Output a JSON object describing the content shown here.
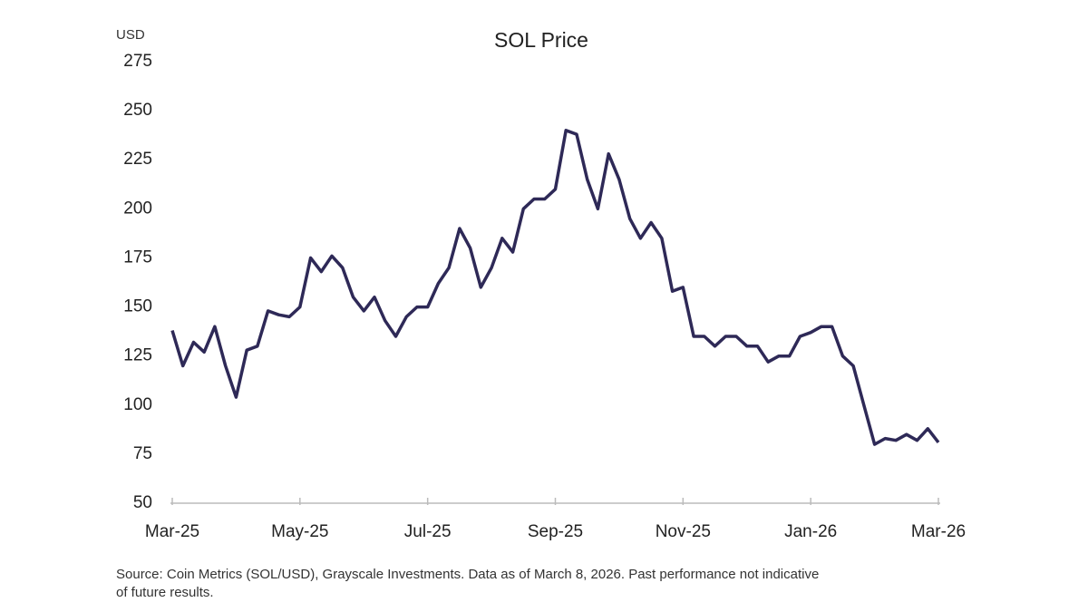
{
  "chart_data": {
    "type": "line",
    "title": "SOL Price",
    "y_label": "USD",
    "note": "Source: Coin Metrics (SOL/USD), Grayscale Investments. Data as of March 8, 2026. Past performance not indicative of future results.",
    "categories": [
      "Mar-25",
      null,
      null,
      null,
      null,
      null,
      null,
      null,
      null,
      null,
      null,
      null,
      "May-25",
      null,
      null,
      null,
      null,
      null,
      null,
      null,
      null,
      null,
      null,
      null,
      "Jul-25",
      null,
      null,
      null,
      null,
      null,
      null,
      null,
      null,
      null,
      null,
      null,
      "Sep-25",
      null,
      null,
      null,
      null,
      null,
      null,
      null,
      null,
      null,
      null,
      null,
      "Nov-25",
      null,
      null,
      null,
      null,
      null,
      null,
      null,
      null,
      null,
      null,
      null,
      "Jan-26",
      null,
      null,
      null,
      null,
      null,
      null,
      null,
      null,
      null,
      null,
      null,
      "Mar-26"
    ],
    "series": [
      {
        "name": "SOL",
        "color": "#2e2957",
        "values": [
          138,
          120,
          132,
          127,
          140,
          120,
          104,
          128,
          130,
          148,
          146,
          145,
          150,
          175,
          168,
          176,
          170,
          155,
          148,
          155,
          143,
          135,
          145,
          150,
          150,
          162,
          170,
          190,
          180,
          160,
          170,
          185,
          178,
          200,
          205,
          205,
          210,
          240,
          238,
          215,
          200,
          228,
          215,
          195,
          185,
          193,
          185,
          158,
          160,
          135,
          135,
          130,
          135,
          135,
          130,
          130,
          122,
          125,
          125,
          135,
          137,
          140,
          140,
          125,
          120,
          100,
          80,
          83,
          82,
          85,
          82,
          88,
          81
        ]
      }
    ],
    "ylim": [
      50,
      275
    ],
    "yticks": [
      50,
      75,
      100,
      125,
      150,
      175,
      200,
      225,
      250,
      275
    ],
    "grid": false
  }
}
